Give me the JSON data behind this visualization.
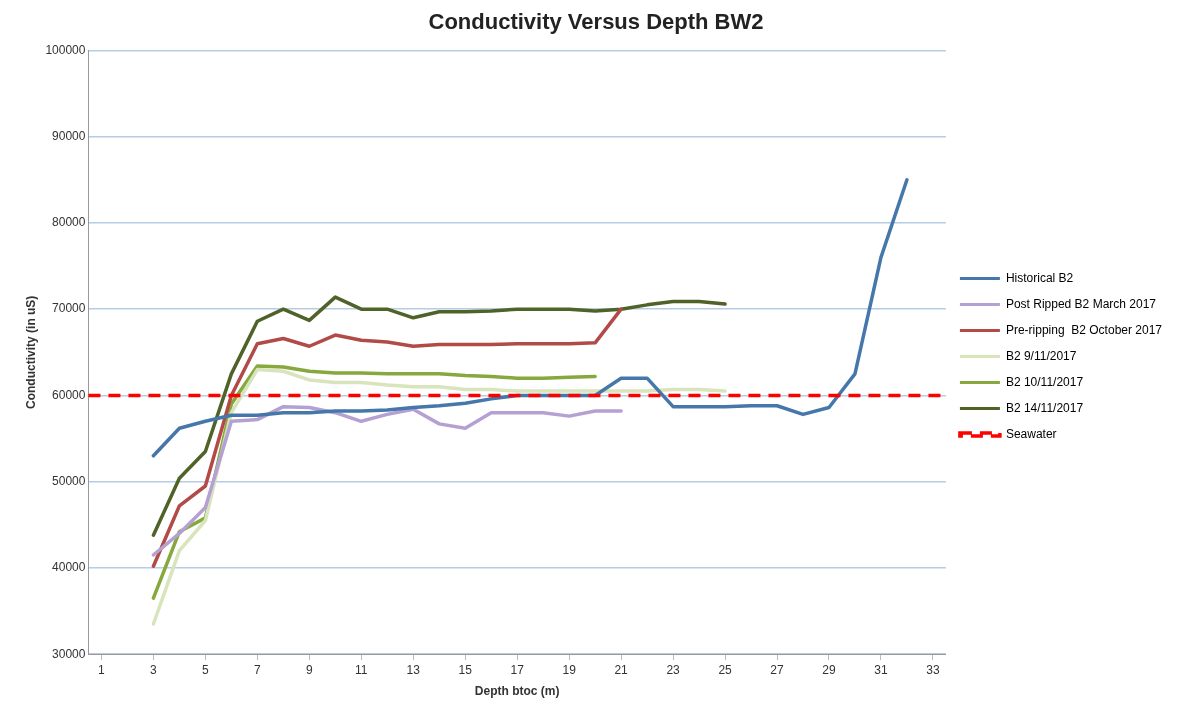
{
  "chart_data": {
    "type": "line",
    "title": "Conductivity Versus Depth BW2",
    "xlabel": "Depth btoc (m)",
    "ylabel": "Conductivity (in uS)",
    "xlim": [
      0.5,
      33.5
    ],
    "xticks": [
      1,
      3,
      5,
      7,
      9,
      11,
      13,
      15,
      17,
      19,
      21,
      23,
      25,
      27,
      29,
      31,
      33
    ],
    "ylim": [
      30000,
      100000
    ],
    "yticks": [
      30000,
      40000,
      50000,
      60000,
      70000,
      80000,
      90000,
      100000
    ],
    "grid": "y",
    "legend": "right",
    "marker": "none",
    "line_style": "solid",
    "series": [
      {
        "name": "Historical B2",
        "color": "#4677aa",
        "x": [
          3,
          4,
          5,
          6,
          7,
          8,
          9,
          10,
          11,
          12,
          13,
          14,
          15,
          16,
          17,
          18,
          19,
          20,
          21,
          22,
          23,
          24,
          25,
          26,
          27,
          28,
          29,
          30,
          31,
          32
        ],
        "values": [
          53000,
          56200,
          57000,
          57700,
          57700,
          58000,
          58000,
          58200,
          58200,
          58300,
          58600,
          58800,
          59100,
          59600,
          60000,
          60000,
          60000,
          60000,
          62000,
          62000,
          58700,
          58700,
          58700,
          58800,
          58800,
          57800,
          58600,
          62500,
          76000,
          85000
        ]
      },
      {
        "name": "Post Ripped B2 March 2017",
        "color": "#b4a0d2",
        "x": [
          3,
          4,
          5,
          6,
          7,
          8,
          9,
          10,
          11,
          12,
          13,
          14,
          15,
          16,
          17,
          18,
          19,
          20,
          21
        ],
        "values": [
          41500,
          44000,
          47000,
          57000,
          57200,
          58700,
          58600,
          58000,
          57000,
          57800,
          58400,
          56700,
          56200,
          58000,
          58000,
          58000,
          57600,
          58200,
          58200
        ]
      },
      {
        "name": "Pre-ripping  B2 October 2017",
        "color": "#b24a48",
        "x": [
          3,
          4,
          5,
          6,
          7,
          8,
          9,
          10,
          11,
          12,
          13,
          14,
          15,
          16,
          17,
          18,
          19,
          20,
          21
        ],
        "values": [
          40200,
          47200,
          49500,
          60000,
          66000,
          66600,
          65700,
          67000,
          66400,
          66200,
          65700,
          65900,
          65900,
          65900,
          66000,
          66000,
          66000,
          66100,
          70000
        ]
      },
      {
        "name": "B2 9/11/2017",
        "color": "#d8e4bc",
        "x": [
          3,
          4,
          5,
          6,
          7,
          8,
          9,
          10,
          11,
          12,
          13,
          14,
          15,
          16,
          17,
          18,
          19,
          20,
          21,
          22,
          23,
          24,
          25
        ],
        "values": [
          33500,
          42000,
          45500,
          58000,
          63000,
          62800,
          61800,
          61500,
          61500,
          61200,
          61000,
          61000,
          60700,
          60700,
          60500,
          60500,
          60500,
          60500,
          60500,
          60500,
          60700,
          60700,
          60500
        ]
      },
      {
        "name": "B2 10/11/2017",
        "color": "#86a83e",
        "x": [
          3,
          4,
          5,
          6,
          7,
          8,
          9,
          10,
          11,
          12,
          13,
          14,
          15,
          16,
          17,
          18,
          19,
          20
        ],
        "values": [
          36500,
          44200,
          45800,
          59000,
          63400,
          63300,
          62800,
          62600,
          62600,
          62500,
          62500,
          62500,
          62300,
          62200,
          62000,
          62000,
          62100,
          62200
        ]
      },
      {
        "name": "B2 14/11/2017",
        "color": "#4f6228",
        "x": [
          3,
          4,
          5,
          6,
          7,
          8,
          9,
          10,
          11,
          12,
          13,
          14,
          15,
          16,
          17,
          18,
          19,
          20,
          21,
          22,
          23,
          24,
          25
        ],
        "values": [
          43800,
          50400,
          53500,
          62500,
          68600,
          70000,
          68700,
          71400,
          70000,
          70000,
          69000,
          69700,
          69700,
          69800,
          70000,
          70000,
          70000,
          69800,
          70000,
          70500,
          70900,
          70900,
          70600
        ]
      }
    ],
    "ref_lines": [
      {
        "axis": "y",
        "value": 60000,
        "label": "Seawater",
        "color": "#ff0000",
        "line_style": "dashed"
      }
    ]
  }
}
